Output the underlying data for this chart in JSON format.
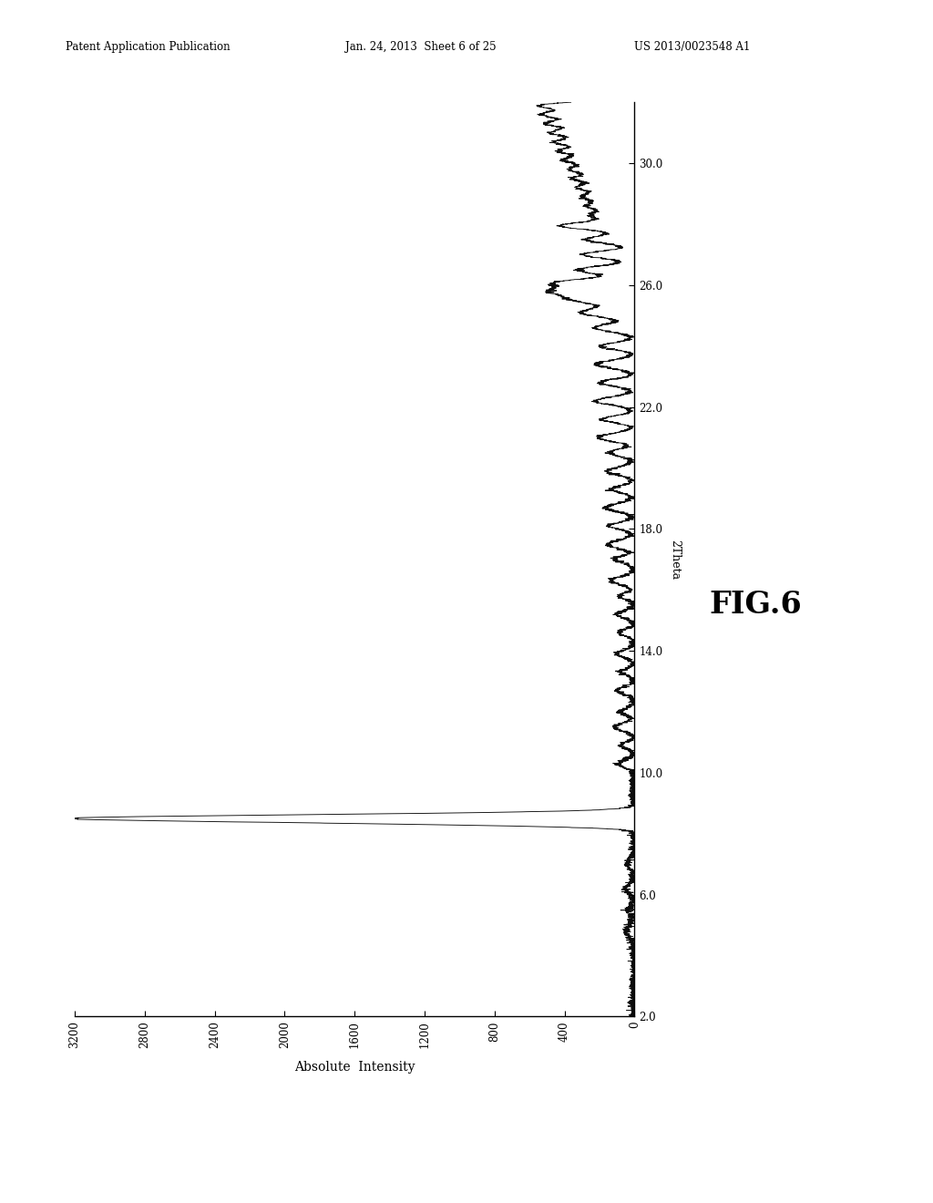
{
  "xlabel": "Absolute  Intensity",
  "ylabel": "2Theta",
  "fig_label": "FIG.6",
  "header_left": "Patent Application Publication",
  "header_mid": "Jan. 24, 2013  Sheet 6 of 25",
  "header_right": "US 2013/0023548 A1",
  "xmin": 0,
  "xmax": 3200,
  "ymin": 2.0,
  "ymax": 32.0,
  "yticks": [
    2.0,
    6.0,
    10.0,
    14.0,
    18.0,
    22.0,
    26.0,
    30.0
  ],
  "xticks": [
    0,
    400,
    800,
    1200,
    1600,
    2000,
    2400,
    2800,
    3200
  ],
  "background_color": "#ffffff",
  "line_color": "#000000"
}
